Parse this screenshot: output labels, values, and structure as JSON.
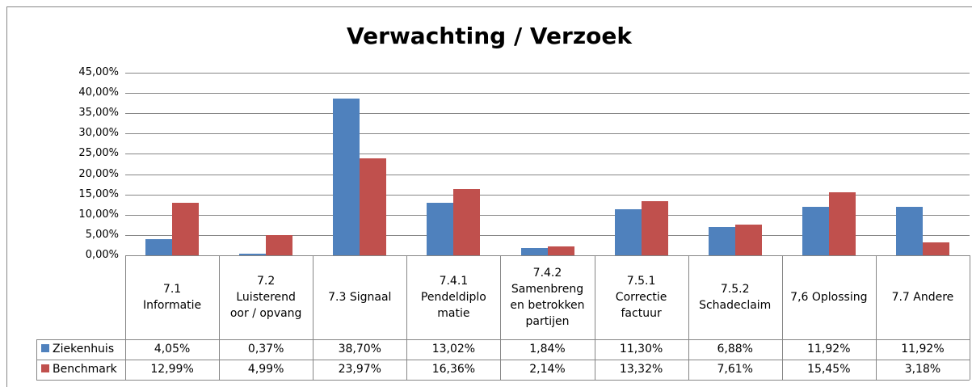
{
  "chart_data": {
    "type": "bar",
    "title": "Verwachting / Verzoek",
    "categories": [
      "7.1\nInformatie",
      "7.2\nLuisterend\noor / opvang",
      "7.3 Signaal",
      "7.4.1\nPendeldiplo\nmatie",
      "7.4.2\nSamenbreng\nen betrokken\npartijen",
      "7.5.1\nCorrectie\nfactuur",
      "7.5.2\nSchadeclaim",
      "7,6 Oplossing",
      "7.7 Andere"
    ],
    "series": [
      {
        "name": "Ziekenhuis",
        "color": "#4f81bd",
        "values": [
          4.05,
          0.37,
          38.7,
          13.02,
          1.84,
          11.3,
          6.88,
          11.92,
          11.92
        ],
        "value_labels": [
          "4,05%",
          "0,37%",
          "38,70%",
          "13,02%",
          "1,84%",
          "11,30%",
          "6,88%",
          "11,92%",
          "11,92%"
        ]
      },
      {
        "name": "Benchmark",
        "color": "#c0504d",
        "values": [
          12.99,
          4.99,
          23.97,
          16.36,
          2.14,
          13.32,
          7.61,
          15.45,
          3.18
        ],
        "value_labels": [
          "12,99%",
          "4,99%",
          "23,97%",
          "16,36%",
          "2,14%",
          "13,32%",
          "7,61%",
          "15,45%",
          "3,18%"
        ]
      }
    ],
    "ylim": [
      0,
      45
    ],
    "yticks": [
      {
        "value": 0,
        "label": "0,00%"
      },
      {
        "value": 5,
        "label": "5,00%"
      },
      {
        "value": 10,
        "label": "10,00%"
      },
      {
        "value": 15,
        "label": "15,00%"
      },
      {
        "value": 20,
        "label": "20,00%"
      },
      {
        "value": 25,
        "label": "25,00%"
      },
      {
        "value": 30,
        "label": "30,00%"
      },
      {
        "value": 35,
        "label": "35,00%"
      },
      {
        "value": 40,
        "label": "40,00%"
      },
      {
        "value": 45,
        "label": "45,00%"
      }
    ],
    "grid": true
  }
}
